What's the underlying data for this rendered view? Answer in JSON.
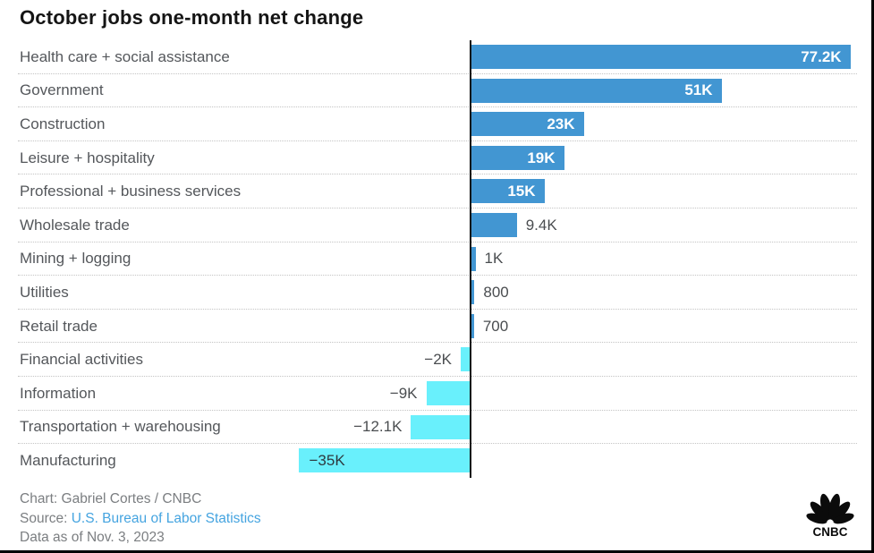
{
  "title": "October jobs one-month net change",
  "chart_data": {
    "type": "bar",
    "orientation": "horizontal",
    "unit": "jobs, one-month net change (thousands)",
    "baseline": 0,
    "grid": "dotted row separators",
    "categories": [
      "Health care + social assistance",
      "Government",
      "Construction",
      "Leisure + hospitality",
      "Professional + business services",
      "Wholesale trade",
      "Mining + logging",
      "Utilities",
      "Retail trade",
      "Financial activities",
      "Information",
      "Transportation + warehousing",
      "Manufacturing"
    ],
    "values_thousands": [
      77.2,
      51,
      23,
      19,
      15,
      9.4,
      1,
      0.8,
      0.7,
      -2,
      -9,
      -12.1,
      -35
    ],
    "value_labels": [
      "77.2K",
      "51K",
      "23K",
      "19K",
      "15K",
      "9.4K",
      "1K",
      "800",
      "700",
      "−2K",
      "−9K",
      "−12.1K",
      "−35K"
    ],
    "positive_color": "#4296d2",
    "negative_color": "#69f0fc"
  },
  "colors": {
    "positive_bar": "#4296d2",
    "negative_bar": "#69f0fc",
    "axis": "#121212",
    "label_gray": "#54575b",
    "link_blue": "#45a4e0"
  },
  "footer": {
    "credit": "Chart: Gabriel Cortes / CNBC",
    "source_prefix": "Source: ",
    "source_link": "U.S. Bureau of Labor Statistics",
    "data_as_of": "Data as of Nov. 3, 2023"
  },
  "logo": {
    "text": "CNBC",
    "icon": "cnbc-peacock-icon"
  }
}
